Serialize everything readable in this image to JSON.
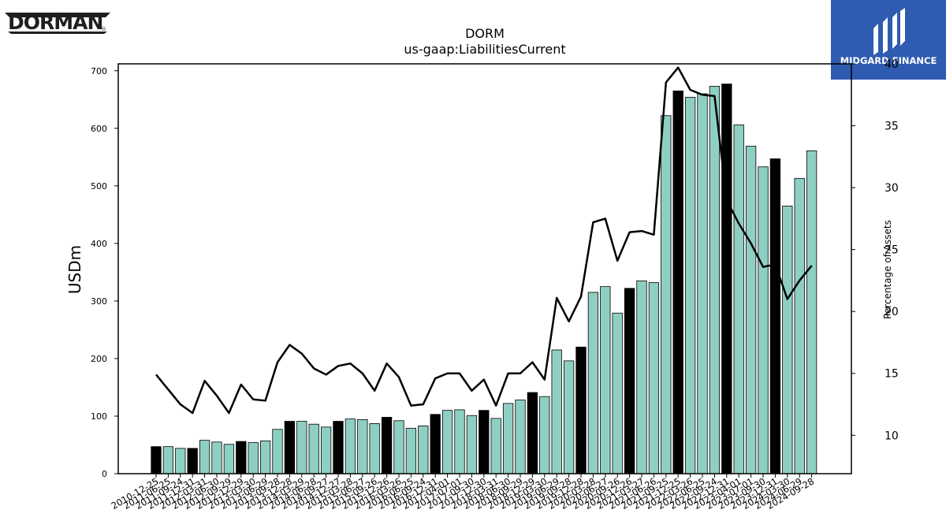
{
  "brand": {
    "company_logo_text": "DORMAN",
    "registered_mark": "®",
    "partner_logo_text": "MIDGARD FINANCE"
  },
  "chart_data": {
    "type": "bar",
    "title": "DORM",
    "subtitle": "us-gaap:LiabilitiesCurrent",
    "ylabel": "USDm",
    "y2label": "Percentage of Assets",
    "ylim": [
      0,
      712
    ],
    "y2lim": [
      6.9,
      40.0
    ],
    "yticks": [
      0,
      100,
      200,
      300,
      400,
      500,
      600,
      700
    ],
    "y2ticks": [
      10,
      15,
      20,
      25,
      30,
      35,
      40
    ],
    "colors": {
      "bar": "#8ecfc3",
      "bar_highlight": "#000000",
      "line": "#000000"
    },
    "categories": [
      "2010-12-25",
      "2011-06-25",
      "2011-09-24",
      "2011-12-31",
      "2012-03-31",
      "2012-06-30",
      "2012-09-29",
      "2012-12-29",
      "2013-03-30",
      "2013-06-29",
      "2013-09-28",
      "2013-12-28",
      "2014-03-29",
      "2014-06-28",
      "2014-09-27",
      "2014-12-27",
      "2015-03-28",
      "2015-06-27",
      "2015-09-26",
      "2015-12-26",
      "2016-03-26",
      "2016-06-25",
      "2016-09-24",
      "2016-12-31",
      "2017-04-01",
      "2017-07-01",
      "2017-09-30",
      "2017-12-30",
      "2018-03-31",
      "2018-06-30",
      "2018-09-29",
      "2018-12-29",
      "2019-03-30",
      "2019-06-29",
      "2019-09-28",
      "2019-12-28",
      "2020-03-28",
      "2020-06-27",
      "2020-09-26",
      "2020-12-26",
      "2021-03-27",
      "2021-06-26",
      "2021-09-25",
      "2021-12-25",
      "2022-03-26",
      "2022-06-25",
      "2022-09-24",
      "2022-12-31",
      "2023-04-01",
      "2023-07-01",
      "2023-09-30",
      "2023-12-31",
      "2024-03-30",
      "2024-06-29",
      "2024-09-28"
    ],
    "tick_labels": [
      "2010-12-25",
      "2011-06-25",
      "2011-09-24",
      "2011-12-31",
      "2012-03-31",
      "2012-06-30",
      "2012-09-29",
      "2012-12-29",
      "2013-03-30",
      "2013-06-29",
      "2013-09-28",
      "2013-12-28",
      "2014-03-29",
      "2014-06-28",
      "2014-09-27",
      "2014-12-27",
      "2015-03-28",
      "2015-06-27",
      "2015-09-26",
      "2015-12-26",
      "2016-03-26",
      "2016-06-25",
      "2016-09-24",
      "2016-12-31",
      "2017-04-01",
      "2017-07-01",
      "2017-09-30",
      "2017-12-30",
      "2018-03-31",
      "2018-06-30",
      "2018-09-29",
      "2018-12-29",
      "2019-03-30",
      "2019-06-29",
      "2019-09-28",
      "2019-12-28",
      "2020-03-28",
      "2020-06-27",
      "2020-09-26",
      "2020-12-26",
      "2021-03-27",
      "2021-06-26",
      "2021-09-25",
      "2021-12-25",
      "2022-03-26",
      "2022-06-25",
      "2022-09-24",
      "2022-12-31",
      "2023-04-01",
      "2023-07-01",
      "2023-09-30",
      "2023-12-31",
      "2024-03-30",
      "2024-06-29",
      "2024-09-28"
    ],
    "series": [
      {
        "values": [
          47,
          47,
          44,
          44,
          58,
          55,
          51,
          56,
          54,
          57,
          77,
          91,
          91,
          86,
          81,
          91,
          95,
          94,
          87,
          98,
          92,
          79,
          83,
          103,
          110,
          111,
          101,
          110,
          96,
          122,
          128,
          141,
          134,
          215,
          196,
          220,
          315,
          325,
          279,
          322,
          335,
          332,
          622,
          665,
          654,
          660,
          673,
          677,
          606,
          569,
          533,
          547,
          465,
          513,
          561
        ]
      },
      {
        "values": [
          14.9,
          13.7,
          12.5,
          11.8,
          14.4,
          13.2,
          11.8,
          14.1,
          12.9,
          12.8,
          15.9,
          17.3,
          16.6,
          15.4,
          14.9,
          15.6,
          15.8,
          15.0,
          13.6,
          15.8,
          14.7,
          12.4,
          12.5,
          14.6,
          15.0,
          15.0,
          13.6,
          14.5,
          12.4,
          15.0,
          15.0,
          15.9,
          14.5,
          21.1,
          19.2,
          21.2,
          27.2,
          27.5,
          24.1,
          26.4,
          26.5,
          26.2,
          38.5,
          39.7,
          37.9,
          37.5,
          37.4,
          29.0,
          27.1,
          25.5,
          23.6,
          23.8,
          21.0,
          22.5,
          23.7
        ]
      }
    ],
    "highlight_categories": [
      "2010-12-25",
      "2011-12-31",
      "2012-12-29",
      "2013-12-28",
      "2014-12-27",
      "2015-12-26",
      "2016-12-31",
      "2017-12-30",
      "2018-12-29",
      "2019-12-28",
      "2020-12-26",
      "2021-12-25",
      "2022-12-31",
      "2023-12-31"
    ]
  }
}
